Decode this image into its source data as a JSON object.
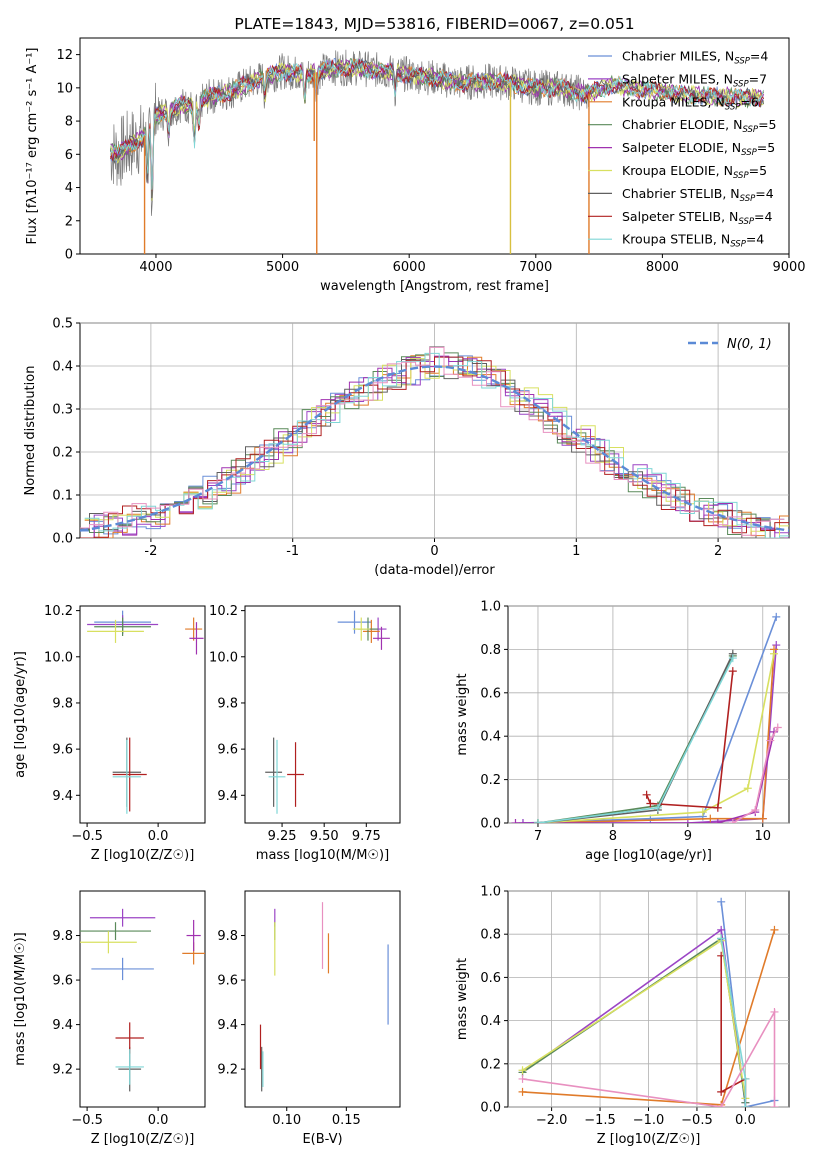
{
  "colors": {
    "Chabrier MILES": "#6a8fd8",
    "Salpeter MILES": "#9b45c5",
    "Kroupa MILES": "#e07b2a",
    "Chabrier ELODIE": "#5a8a5a",
    "Salpeter ELODIE": "#a032b0",
    "Kroupa ELODIE": "#d8e060",
    "Chabrier STELIB": "#606060",
    "Salpeter STELIB": "#b02020",
    "Kroupa STELIB": "#7fd6d6",
    "pink": "#e890c0",
    "grid": "#b0b0b0",
    "gauss": "#5b8ad6"
  },
  "chart_data": [
    {
      "id": "spectrum",
      "type": "line",
      "title": "PLATE=1843, MJD=53816, FIBERID=0067, z=0.051",
      "xlabel": "wavelength [Angstrom, rest frame]",
      "ylabel": "Flux [fλ10⁻¹⁷ erg cm⁻² s⁻¹ A⁻¹]",
      "xlim": [
        3400,
        9000
      ],
      "ylim": [
        0,
        13
      ],
      "xticks": [
        4000,
        5000,
        6000,
        7000,
        8000,
        9000
      ],
      "yticks": [
        0,
        2,
        4,
        6,
        8,
        10,
        12
      ],
      "legend_position": "top-right",
      "legend": [
        {
          "model": "Chabrier MILES",
          "prefix": "Chabrier MILES, N",
          "sub": "SSP",
          "suffix": "=4"
        },
        {
          "model": "Salpeter MILES",
          "prefix": "Salpeter MILES, N",
          "sub": "SSP",
          "suffix": "=7"
        },
        {
          "model": "Kroupa MILES",
          "prefix": "Kroupa MILES, N",
          "sub": "SSP",
          "suffix": "=6"
        },
        {
          "model": "Chabrier ELODIE",
          "prefix": "Chabrier ELODIE, N",
          "sub": "SSP",
          "suffix": "=5"
        },
        {
          "model": "Salpeter ELODIE",
          "prefix": "Salpeter ELODIE, N",
          "sub": "SSP",
          "suffix": "=5"
        },
        {
          "model": "Kroupa ELODIE",
          "prefix": "Kroupa ELODIE, N",
          "sub": "SSP",
          "suffix": "=5"
        },
        {
          "model": "Chabrier STELIB",
          "prefix": "Chabrier STELIB, N",
          "sub": "SSP",
          "suffix": "=4"
        },
        {
          "model": "Salpeter STELIB",
          "prefix": "Salpeter STELIB, N",
          "sub": "SSP",
          "suffix": "=4"
        },
        {
          "model": "Kroupa STELIB",
          "prefix": "Kroupa STELIB, N",
          "sub": "SSP",
          "suffix": "=4"
        }
      ],
      "continuum": [
        [
          3600,
          6.3
        ],
        [
          3700,
          6.0
        ],
        [
          3800,
          6.6
        ],
        [
          3900,
          7.0
        ],
        [
          4000,
          8.3
        ],
        [
          4100,
          8.6
        ],
        [
          4200,
          9.0
        ],
        [
          4300,
          8.8
        ],
        [
          4400,
          9.4
        ],
        [
          4600,
          9.8
        ],
        [
          4800,
          10.5
        ],
        [
          5000,
          11.0
        ],
        [
          5200,
          10.8
        ],
        [
          5400,
          11.2
        ],
        [
          5600,
          11.2
        ],
        [
          5800,
          11.0
        ],
        [
          6000,
          10.8
        ],
        [
          6200,
          10.6
        ],
        [
          6400,
          10.3
        ],
        [
          6600,
          10.4
        ],
        [
          6800,
          10.3
        ],
        [
          7000,
          10.0
        ],
        [
          7200,
          10.0
        ],
        [
          7400,
          9.6
        ],
        [
          7600,
          10.2
        ],
        [
          7800,
          9.9
        ],
        [
          8000,
          9.8
        ],
        [
          8200,
          9.6
        ],
        [
          8400,
          9.5
        ],
        [
          8600,
          9.4
        ],
        [
          8800,
          9.4
        ]
      ],
      "absorption_lines": [
        [
          3934,
          4.5
        ],
        [
          3969,
          3.5
        ],
        [
          4102,
          7.5
        ],
        [
          4304,
          6.8
        ],
        [
          4340,
          7.8
        ],
        [
          4861,
          9.5
        ],
        [
          5175,
          9.3
        ],
        [
          5270,
          10.0
        ],
        [
          5890,
          9.8
        ],
        [
          6563,
          10.2
        ]
      ],
      "spikes": [
        [
          3910,
          0
        ],
        [
          5270,
          0
        ],
        [
          5250,
          6.8
        ],
        [
          6800,
          0
        ],
        [
          7420,
          0
        ]
      ]
    },
    {
      "id": "residuals",
      "type": "bar",
      "xlabel": "(data-model)/error",
      "ylabel": "Normed distribution",
      "xlim": [
        -2.5,
        2.5
      ],
      "ylim": [
        0,
        0.5
      ],
      "xticks": [
        -2,
        -1,
        0,
        1,
        2
      ],
      "yticks": [
        0.0,
        0.1,
        0.2,
        0.3,
        0.4,
        0.5
      ],
      "legend_position": "top-right",
      "legend_label": "N(0, 1)",
      "bin_width": 0.1,
      "bin_start": -2.5,
      "values": [
        0.02,
        0.03,
        0.03,
        0.04,
        0.05,
        0.055,
        0.06,
        0.08,
        0.095,
        0.11,
        0.13,
        0.15,
        0.18,
        0.2,
        0.22,
        0.24,
        0.27,
        0.29,
        0.32,
        0.33,
        0.35,
        0.37,
        0.38,
        0.39,
        0.4,
        0.41,
        0.4,
        0.39,
        0.38,
        0.36,
        0.34,
        0.32,
        0.3,
        0.27,
        0.25,
        0.23,
        0.2,
        0.18,
        0.16,
        0.14,
        0.12,
        0.1,
        0.09,
        0.07,
        0.06,
        0.05,
        0.04,
        0.03,
        0.025,
        0.02
      ]
    },
    {
      "id": "zage",
      "type": "scatter",
      "xlabel": "Z [log10(Z/Z☉)]",
      "ylabel": "age  [log10(age/yr)]",
      "xlim": [
        -0.55,
        0.33
      ],
      "ylim": [
        9.28,
        10.22
      ],
      "xticks": [
        -0.5,
        0.0
      ],
      "xticklabels": [
        "−0.5",
        "0.0"
      ],
      "yticks": [
        9.4,
        9.6,
        9.8,
        10.0,
        10.2
      ],
      "points": [
        {
          "model": "Chabrier MILES",
          "x": -0.25,
          "y": 10.15,
          "xerr": 0.2,
          "yerr": 0.05
        },
        {
          "model": "Salpeter MILES",
          "x": -0.25,
          "y": 10.14,
          "xerr": 0.25,
          "yerr": 0.04
        },
        {
          "model": "Kroupa MILES",
          "x": 0.25,
          "y": 10.12,
          "xerr": 0.06,
          "yerr": 0.05
        },
        {
          "model": "Chabrier ELODIE",
          "x": -0.25,
          "y": 10.13,
          "xerr": 0.2,
          "yerr": 0.04
        },
        {
          "model": "Salpeter ELODIE",
          "x": 0.27,
          "y": 10.08,
          "xerr": 0.05,
          "yerr": 0.07
        },
        {
          "model": "Kroupa ELODIE",
          "x": -0.3,
          "y": 10.11,
          "xerr": 0.2,
          "yerr": 0.05
        },
        {
          "model": "Chabrier STELIB",
          "x": -0.22,
          "y": 9.5,
          "xerr": 0.1,
          "yerr": 0.15
        },
        {
          "model": "Salpeter STELIB",
          "x": -0.2,
          "y": 9.49,
          "xerr": 0.12,
          "yerr": 0.16
        },
        {
          "model": "Kroupa STELIB",
          "x": -0.22,
          "y": 9.48,
          "xerr": 0.1,
          "yerr": 0.16
        }
      ]
    },
    {
      "id": "massage",
      "type": "scatter",
      "xlabel": "mass [log10(M/M☉)]",
      "ylabel": "",
      "xlim": [
        9.03,
        9.95
      ],
      "ylim": [
        9.28,
        10.22
      ],
      "xticks": [
        9.25,
        9.5,
        9.75
      ],
      "xticklabels": [
        "9.25",
        "9.50",
        "9.75"
      ],
      "yticks": [
        9.4,
        9.6,
        9.8,
        10.0,
        10.2
      ],
      "points": [
        {
          "model": "Chabrier MILES",
          "x": 9.68,
          "y": 10.15,
          "xerr": 0.1,
          "yerr": 0.05
        },
        {
          "model": "Salpeter MILES",
          "x": 9.82,
          "y": 10.12,
          "xerr": 0.05,
          "yerr": 0.05
        },
        {
          "model": "Kroupa MILES",
          "x": 9.78,
          "y": 10.11,
          "xerr": 0.05,
          "yerr": 0.05
        },
        {
          "model": "Chabrier ELODIE",
          "x": 9.76,
          "y": 10.12,
          "xerr": 0.06,
          "yerr": 0.05
        },
        {
          "model": "Salpeter ELODIE",
          "x": 9.84,
          "y": 10.08,
          "xerr": 0.05,
          "yerr": 0.05
        },
        {
          "model": "Kroupa ELODIE",
          "x": 9.72,
          "y": 10.12,
          "xerr": 0.05,
          "yerr": 0.05
        },
        {
          "model": "Chabrier STELIB",
          "x": 9.2,
          "y": 9.5,
          "xerr": 0.05,
          "yerr": 0.15
        },
        {
          "model": "Salpeter STELIB",
          "x": 9.33,
          "y": 9.49,
          "xerr": 0.05,
          "yerr": 0.14
        },
        {
          "model": "Kroupa STELIB",
          "x": 9.22,
          "y": 9.48,
          "xerr": 0.05,
          "yerr": 0.16
        }
      ]
    },
    {
      "id": "weight_age",
      "type": "line",
      "xlabel": "age  [log10(age/yr)]",
      "ylabel": "mass weight",
      "xlim": [
        6.6,
        10.35
      ],
      "ylim": [
        0,
        1.0
      ],
      "xticks": [
        7,
        8,
        9,
        10
      ],
      "yticks": [
        0.0,
        0.2,
        0.4,
        0.6,
        0.8,
        1.0
      ],
      "series": [
        {
          "model": "Chabrier MILES",
          "points": [
            [
              6.8,
              0.0
            ],
            [
              8.5,
              0.02
            ],
            [
              9.2,
              0.03
            ],
            [
              10.18,
              0.95
            ]
          ]
        },
        {
          "model": "Salpeter MILES",
          "points": [
            [
              6.8,
              0.0
            ],
            [
              9.0,
              0.0
            ],
            [
              10.0,
              0.02
            ],
            [
              10.18,
              0.82
            ]
          ]
        },
        {
          "model": "Kroupa MILES",
          "points": [
            [
              7.0,
              0.0
            ],
            [
              9.3,
              0.02
            ],
            [
              10.0,
              0.02
            ],
            [
              10.15,
              0.8
            ]
          ]
        },
        {
          "model": "Chabrier ELODIE",
          "points": [
            [
              7.0,
              0.0
            ],
            [
              8.6,
              0.08
            ],
            [
              9.6,
              0.77
            ]
          ]
        },
        {
          "model": "Salpeter ELODIE",
          "points": [
            [
              6.7,
              0.0
            ],
            [
              9.4,
              0.0
            ],
            [
              9.9,
              0.05
            ],
            [
              10.15,
              0.42
            ]
          ]
        },
        {
          "model": "Kroupa ELODIE",
          "points": [
            [
              7.0,
              0.0
            ],
            [
              9.2,
              0.05
            ],
            [
              9.8,
              0.16
            ],
            [
              10.15,
              0.78
            ]
          ]
        },
        {
          "model": "Chabrier STELIB",
          "points": [
            [
              7.0,
              0.0
            ],
            [
              8.6,
              0.06
            ],
            [
              9.6,
              0.78
            ]
          ]
        },
        {
          "model": "Salpeter STELIB",
          "points": [
            [
              8.45,
              0.13
            ],
            [
              8.5,
              0.09
            ],
            [
              9.4,
              0.07
            ],
            [
              9.6,
              0.7
            ]
          ]
        },
        {
          "model": "Kroupa STELIB",
          "points": [
            [
              7.0,
              0.0
            ],
            [
              8.6,
              0.07
            ],
            [
              9.6,
              0.76
            ]
          ]
        },
        {
          "model": "pink",
          "points": [
            [
              9.6,
              0.0
            ],
            [
              9.9,
              0.06
            ],
            [
              10.1,
              0.38
            ],
            [
              10.2,
              0.44
            ]
          ]
        }
      ]
    },
    {
      "id": "zmass",
      "type": "scatter",
      "xlabel": "Z [log10(Z/Z☉)]",
      "ylabel": "mass [log10(M/M☉)]",
      "xlim": [
        -0.55,
        0.33
      ],
      "ylim": [
        9.03,
        10.0
      ],
      "xticks": [
        -0.5,
        0.0
      ],
      "xticklabels": [
        "−0.5",
        "0.0"
      ],
      "yticks": [
        9.2,
        9.4,
        9.6,
        9.8
      ],
      "points": [
        {
          "model": "Chabrier MILES",
          "x": -0.25,
          "y": 9.65,
          "xerr": 0.22,
          "yerr": 0.05
        },
        {
          "model": "Salpeter MILES",
          "x": -0.25,
          "y": 9.88,
          "xerr": 0.23,
          "yerr": 0.04
        },
        {
          "model": "Kroupa MILES",
          "x": 0.25,
          "y": 9.72,
          "xerr": 0.08,
          "yerr": 0.05
        },
        {
          "model": "Chabrier ELODIE",
          "x": -0.3,
          "y": 9.82,
          "xerr": 0.25,
          "yerr": 0.04
        },
        {
          "model": "Salpeter ELODIE",
          "x": 0.25,
          "y": 9.8,
          "xerr": 0.05,
          "yerr": 0.07
        },
        {
          "model": "Kroupa ELODIE",
          "x": -0.35,
          "y": 9.77,
          "xerr": 0.2,
          "yerr": 0.05
        },
        {
          "model": "Chabrier STELIB",
          "x": -0.2,
          "y": 9.2,
          "xerr": 0.08,
          "yerr": 0.1
        },
        {
          "model": "Salpeter STELIB",
          "x": -0.2,
          "y": 9.34,
          "xerr": 0.1,
          "yerr": 0.07
        },
        {
          "model": "Kroupa STELIB",
          "x": -0.2,
          "y": 9.21,
          "xerr": 0.1,
          "yerr": 0.08
        }
      ]
    },
    {
      "id": "ebvmass",
      "type": "scatter",
      "xlabel": "E(B-V)",
      "ylabel": "",
      "xlim": [
        0.065,
        0.195
      ],
      "ylim": [
        9.03,
        10.0
      ],
      "xticks": [
        0.1,
        0.15
      ],
      "xticklabels": [
        "0.10",
        "0.15"
      ],
      "yticks": [
        9.2,
        9.4,
        9.6,
        9.8
      ],
      "points": [
        {
          "model": "Chabrier MILES",
          "x": 0.185,
          "y": 9.58,
          "yerr": 0.18
        },
        {
          "model": "Salpeter MILES",
          "x": 0.09,
          "y": 9.88,
          "yerr": 0.04
        },
        {
          "model": "Kroupa MILES",
          "x": 0.135,
          "y": 9.72,
          "yerr": 0.09
        },
        {
          "model": "Chabrier ELODIE",
          "x": 0.09,
          "y": 9.82,
          "yerr": 0.04
        },
        {
          "model": "pink",
          "x": 0.13,
          "y": 9.8,
          "yerr": 0.15
        },
        {
          "model": "Kroupa ELODIE",
          "x": 0.09,
          "y": 9.74,
          "yerr": 0.12
        },
        {
          "model": "Chabrier STELIB",
          "x": 0.079,
          "y": 9.2,
          "yerr": 0.1
        },
        {
          "model": "Salpeter STELIB",
          "x": 0.078,
          "y": 9.3,
          "yerr": 0.1
        },
        {
          "model": "Kroupa STELIB",
          "x": 0.08,
          "y": 9.2,
          "yerr": 0.08
        }
      ]
    },
    {
      "id": "weight_z",
      "type": "line",
      "xlabel": "Z [log10(Z/Z☉)]",
      "ylabel": "mass weight",
      "xlim": [
        -2.45,
        0.45
      ],
      "ylim": [
        0,
        1.0
      ],
      "xticks": [
        -2.0,
        -1.5,
        -1.0,
        -0.5,
        0.0
      ],
      "xticklabels": [
        "−2.0",
        "−1.5",
        "−1.0",
        "−0.5",
        "0.0"
      ],
      "yticks": [
        0.0,
        0.2,
        0.4,
        0.6,
        0.8,
        1.0
      ],
      "series": [
        {
          "model": "Chabrier MILES",
          "points": [
            [
              -0.25,
              0.95
            ],
            [
              0.0,
              0.0
            ],
            [
              0.3,
              0.03
            ]
          ]
        },
        {
          "model": "Salpeter MILES",
          "points": [
            [
              -2.3,
              0.16
            ],
            [
              -0.25,
              0.82
            ],
            [
              0.0,
              0.02
            ]
          ]
        },
        {
          "model": "Kroupa MILES",
          "points": [
            [
              -2.3,
              0.07
            ],
            [
              -0.25,
              0.01
            ],
            [
              0.3,
              0.82
            ]
          ]
        },
        {
          "model": "Chabrier ELODIE",
          "points": [
            [
              -2.3,
              0.16
            ],
            [
              -0.25,
              0.78
            ],
            [
              0.0,
              0.02
            ]
          ]
        },
        {
          "model": "Kroupa ELODIE",
          "points": [
            [
              -2.3,
              0.17
            ],
            [
              -0.25,
              0.77
            ],
            [
              0.0,
              0.04
            ]
          ]
        },
        {
          "model": "Salpeter STELIB",
          "points": [
            [
              -0.25,
              0.7
            ],
            [
              -0.25,
              0.07
            ],
            [
              0.0,
              0.13
            ],
            [
              0.0,
              0.0
            ]
          ]
        },
        {
          "model": "Kroupa STELIB",
          "points": [
            [
              -0.25,
              0.78
            ],
            [
              0.0,
              0.13
            ],
            [
              0.0,
              0.0
            ]
          ]
        },
        {
          "model": "pink",
          "points": [
            [
              -2.3,
              0.13
            ],
            [
              -0.25,
              0.0
            ],
            [
              0.3,
              0.44
            ],
            [
              0.3,
              0.0
            ]
          ]
        }
      ]
    }
  ]
}
